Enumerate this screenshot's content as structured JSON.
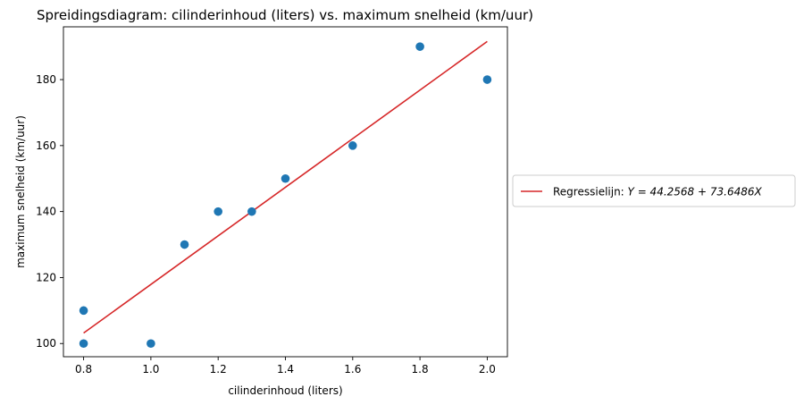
{
  "chart_data": {
    "type": "scatter",
    "title": "Spreidingsdiagram: cilinderinhoud (liters) vs. maximum snelheid (km/uur)",
    "xlabel": "cilinderinhoud (liters)",
    "ylabel": "maximum snelheid (km/uur)",
    "xlim": [
      0.74,
      2.06
    ],
    "ylim": [
      96,
      196
    ],
    "xticks": [
      0.8,
      1.0,
      1.2,
      1.4,
      1.6,
      1.8,
      2.0
    ],
    "xtick_labels": [
      "0.8",
      "1.0",
      "1.2",
      "1.4",
      "1.6",
      "1.8",
      "2.0"
    ],
    "yticks": [
      100,
      120,
      140,
      160,
      180
    ],
    "ytick_labels": [
      "100",
      "120",
      "140",
      "160",
      "180"
    ],
    "grid": false,
    "legend_position": "right, outside",
    "points": [
      {
        "x": 0.8,
        "y": 100
      },
      {
        "x": 0.8,
        "y": 110
      },
      {
        "x": 1.0,
        "y": 100
      },
      {
        "x": 1.1,
        "y": 130
      },
      {
        "x": 1.2,
        "y": 140
      },
      {
        "x": 1.3,
        "y": 140
      },
      {
        "x": 1.4,
        "y": 150
      },
      {
        "x": 1.6,
        "y": 160
      },
      {
        "x": 1.8,
        "y": 190
      },
      {
        "x": 2.0,
        "y": 180
      }
    ],
    "regression": {
      "intercept": 44.2568,
      "slope": 73.6486,
      "x_range": [
        0.8,
        2.0
      ],
      "label_prefix": "Regressielijn: ",
      "label_formula": "Y = 44.2568 + 73.6486X"
    },
    "colors": {
      "points": "#1f77b4",
      "line": "#d62728"
    }
  }
}
